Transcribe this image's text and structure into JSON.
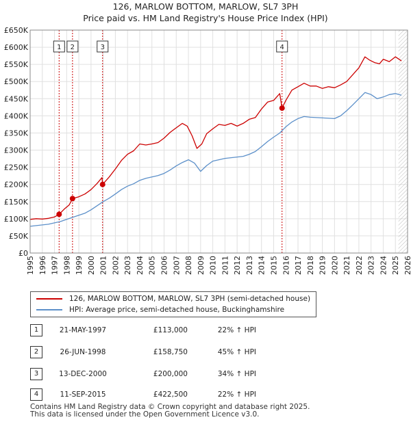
{
  "title_line1": "126, MARLOW BOTTOM, MARLOW, SL7 3PH",
  "title_line2": "Price paid vs. HM Land Registry's House Price Index (HPI)",
  "legend": {
    "property_label": "126, MARLOW BOTTOM, MARLOW, SL7 3PH (semi-detached house)",
    "hpi_label": "HPI: Average price, semi-detached house, Buckinghamshire"
  },
  "colors": {
    "property": "#cc0000",
    "hpi": "#5b8fc9",
    "grid": "#e0e0e0",
    "marker_line": "#cc0000"
  },
  "sales": [
    {
      "num": "1",
      "date": "21-MAY-1997",
      "price": "£113,000",
      "hpi": "22% ↑ HPI"
    },
    {
      "num": "2",
      "date": "26-JUN-1998",
      "price": "£158,750",
      "hpi": "45% ↑ HPI"
    },
    {
      "num": "3",
      "date": "13-DEC-2000",
      "price": "£200,000",
      "hpi": "34% ↑ HPI"
    },
    {
      "num": "4",
      "date": "11-SEP-2015",
      "price": "£422,500",
      "hpi": "22% ↑ HPI"
    }
  ],
  "footer_line1": "Contains HM Land Registry data © Crown copyright and database right 2025.",
  "footer_line2": "This data is licensed under the Open Government Licence v3.0.",
  "chart_data": {
    "type": "line",
    "title": "126, MARLOW BOTTOM, MARLOW, SL7 3PH",
    "subtitle": "Price paid vs. HM Land Registry's House Price Index (HPI)",
    "xlabel": "",
    "ylabel": "",
    "xlim": [
      1995,
      2026
    ],
    "ylim": [
      0,
      650000
    ],
    "x_ticks": [
      1995,
      1996,
      1997,
      1998,
      1999,
      2000,
      2001,
      2002,
      2003,
      2004,
      2005,
      2006,
      2007,
      2008,
      2009,
      2010,
      2011,
      2012,
      2013,
      2014,
      2015,
      2016,
      2017,
      2018,
      2019,
      2020,
      2021,
      2022,
      2023,
      2024,
      2025,
      2026
    ],
    "y_ticks": [
      0,
      50000,
      100000,
      150000,
      200000,
      250000,
      300000,
      350000,
      400000,
      450000,
      500000,
      550000,
      600000,
      650000
    ],
    "y_tick_labels": [
      "£0",
      "£50K",
      "£100K",
      "£150K",
      "£200K",
      "£250K",
      "£300K",
      "£350K",
      "£400K",
      "£450K",
      "£500K",
      "£550K",
      "£600K",
      "£650K"
    ],
    "hatched_after": 2025.25,
    "series": [
      {
        "name": "126, MARLOW BOTTOM, MARLOW, SL7 3PH (semi-detached house)",
        "color": "#cc0000",
        "x": [
          1995.0,
          1995.5,
          1996.0,
          1996.5,
          1997.0,
          1997.38,
          1997.8,
          1998.2,
          1998.48,
          1999.0,
          1999.5,
          2000.0,
          2000.5,
          2000.9,
          2000.95,
          2001.5,
          2002.0,
          2002.5,
          2003.0,
          2003.5,
          2004.0,
          2004.5,
          2005.0,
          2005.5,
          2006.0,
          2006.5,
          2007.0,
          2007.5,
          2007.9,
          2008.3,
          2008.7,
          2009.1,
          2009.5,
          2010.0,
          2010.5,
          2011.0,
          2011.5,
          2012.0,
          2012.5,
          2013.0,
          2013.5,
          2014.0,
          2014.5,
          2015.0,
          2015.5,
          2015.69,
          2016.0,
          2016.5,
          2017.0,
          2017.5,
          2018.0,
          2018.5,
          2019.0,
          2019.5,
          2020.0,
          2020.5,
          2021.0,
          2021.5,
          2022.0,
          2022.5,
          2022.9,
          2023.3,
          2023.7,
          2024.0,
          2024.5,
          2025.0,
          2025.5
        ],
        "values": [
          98000,
          100000,
          99000,
          101000,
          105000,
          113000,
          128000,
          140000,
          158750,
          164000,
          172000,
          185000,
          203000,
          220000,
          200000,
          222000,
          245000,
          270000,
          288000,
          298000,
          318000,
          315000,
          318000,
          322000,
          335000,
          352000,
          365000,
          378000,
          370000,
          342000,
          305000,
          318000,
          348000,
          362000,
          375000,
          372000,
          378000,
          370000,
          378000,
          390000,
          395000,
          420000,
          440000,
          445000,
          465000,
          422500,
          445000,
          475000,
          485000,
          495000,
          487000,
          487000,
          480000,
          485000,
          482000,
          490000,
          500000,
          520000,
          540000,
          572000,
          562000,
          555000,
          552000,
          565000,
          558000,
          572000,
          560000
        ]
      },
      {
        "name": "HPI: Average price, semi-detached house, Buckinghamshire",
        "color": "#5b8fc9",
        "x": [
          1995.0,
          1995.5,
          1996.0,
          1996.5,
          1997.0,
          1997.5,
          1998.0,
          1998.5,
          1999.0,
          1999.5,
          2000.0,
          2000.5,
          2001.0,
          2001.5,
          2002.0,
          2002.5,
          2003.0,
          2003.5,
          2004.0,
          2004.5,
          2005.0,
          2005.5,
          2006.0,
          2006.5,
          2007.0,
          2007.5,
          2008.0,
          2008.5,
          2009.0,
          2009.5,
          2010.0,
          2010.5,
          2011.0,
          2011.5,
          2012.0,
          2012.5,
          2013.0,
          2013.5,
          2014.0,
          2014.5,
          2015.0,
          2015.5,
          2016.0,
          2016.5,
          2017.0,
          2017.5,
          2018.0,
          2018.5,
          2019.0,
          2019.5,
          2020.0,
          2020.5,
          2021.0,
          2021.5,
          2022.0,
          2022.5,
          2023.0,
          2023.5,
          2024.0,
          2024.5,
          2025.0,
          2025.5
        ],
        "values": [
          78000,
          80000,
          82000,
          84000,
          88000,
          92000,
          98000,
          104000,
          110000,
          116000,
          126000,
          138000,
          150000,
          160000,
          172000,
          185000,
          195000,
          202000,
          212000,
          218000,
          222000,
          226000,
          232000,
          242000,
          254000,
          264000,
          272000,
          262000,
          238000,
          255000,
          268000,
          272000,
          276000,
          278000,
          280000,
          282000,
          288000,
          296000,
          310000,
          325000,
          338000,
          350000,
          368000,
          382000,
          392000,
          398000,
          396000,
          395000,
          394000,
          393000,
          392000,
          400000,
          415000,
          432000,
          450000,
          468000,
          462000,
          450000,
          455000,
          462000,
          465000,
          460000
        ]
      }
    ],
    "markers": [
      {
        "label": "1",
        "x": 1997.38,
        "value": 113000
      },
      {
        "label": "2",
        "x": 1998.48,
        "value": 158750
      },
      {
        "label": "3",
        "x": 2000.95,
        "value": 200000
      },
      {
        "label": "4",
        "x": 2015.69,
        "value": 422500
      }
    ]
  }
}
